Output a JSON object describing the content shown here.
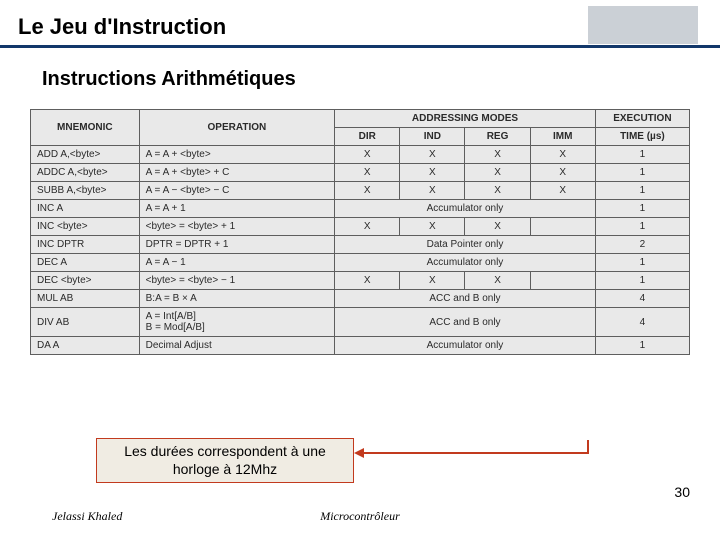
{
  "header": {
    "title": "Le Jeu d'Instruction"
  },
  "subtitle": "Instructions Arithmétiques",
  "table": {
    "head": {
      "mnemonic": "MNEMONIC",
      "operation": "OPERATION",
      "addressing": "ADDRESSING MODES",
      "execution": "EXECUTION",
      "modes": [
        "DIR",
        "IND",
        "REG",
        "IMM"
      ],
      "time": "TIME (µs)"
    },
    "rows": [
      {
        "mnem": "ADD A,<byte>",
        "op": "A = A + <byte>",
        "span": false,
        "cells": [
          "X",
          "X",
          "X",
          "X"
        ],
        "exec": "1"
      },
      {
        "mnem": "ADDC A,<byte>",
        "op": "A = A + <byte> + C",
        "span": false,
        "cells": [
          "X",
          "X",
          "X",
          "X"
        ],
        "exec": "1"
      },
      {
        "mnem": "SUBB A,<byte>",
        "op": "A = A − <byte> − C",
        "span": false,
        "cells": [
          "X",
          "X",
          "X",
          "X"
        ],
        "exec": "1"
      },
      {
        "mnem": "INC A",
        "op": "A = A + 1",
        "span": true,
        "spanText": "Accumulator only",
        "exec": "1"
      },
      {
        "mnem": "INC <byte>",
        "op": "<byte> = <byte> + 1",
        "span": false,
        "cells": [
          "X",
          "X",
          "X",
          ""
        ],
        "exec": "1"
      },
      {
        "mnem": "INC DPTR",
        "op": "DPTR = DPTR + 1",
        "span": true,
        "spanText": "Data Pointer only",
        "exec": "2"
      },
      {
        "mnem": "DEC A",
        "op": "A = A − 1",
        "span": true,
        "spanText": "Accumulator only",
        "exec": "1"
      },
      {
        "mnem": "DEC <byte>",
        "op": "<byte> = <byte> − 1",
        "span": false,
        "cells": [
          "X",
          "X",
          "X",
          ""
        ],
        "exec": "1"
      },
      {
        "mnem": "MUL AB",
        "op": "B:A = B × A",
        "span": true,
        "spanText": "ACC and B only",
        "exec": "4"
      },
      {
        "mnem": "DIV AB",
        "op": "A = Int[A/B]\nB = Mod[A/B]",
        "span": true,
        "spanText": "ACC and B only",
        "exec": "4"
      },
      {
        "mnem": "DA A",
        "op": "Decimal Adjust",
        "span": true,
        "spanText": "Accumulator only",
        "exec": "1"
      }
    ]
  },
  "note": "Les durées correspondent à une horloge à 12Mhz",
  "footer": {
    "left": "Jelassi Khaled",
    "center": "Microcontrôleur"
  },
  "page": "30",
  "colors": {
    "rule": "#12376a",
    "noteBorder": "#c23a1e",
    "noteBg": "#f0ece3",
    "cellBg": "#e9e9e9",
    "headerBox": "#cbd0d6"
  }
}
